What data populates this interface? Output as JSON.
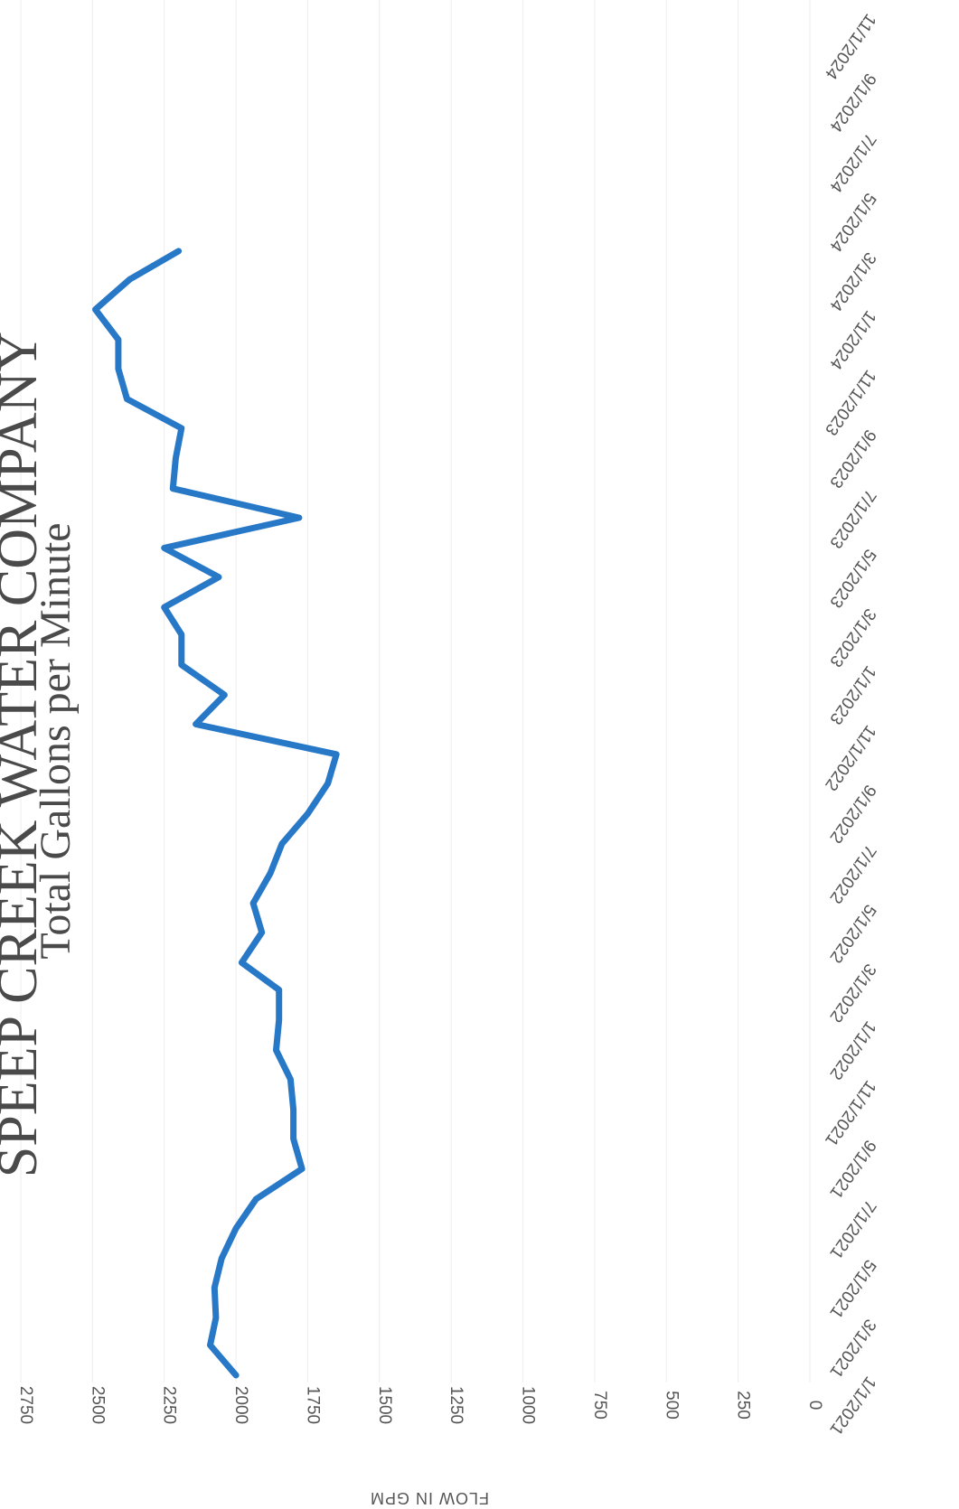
{
  "chart_data": {
    "type": "line",
    "title": "SPEEP CREEK WATER COMPANY",
    "subtitle": "Total Gallons per Minute",
    "xlabel": "",
    "ylabel": "FLOW IN GPM",
    "ylim": [
      0,
      2750
    ],
    "yticks": [
      0,
      250,
      500,
      750,
      1000,
      1250,
      1500,
      1750,
      2000,
      2250,
      2500,
      2750
    ],
    "xlim": [
      "1/1/2021",
      "11/1/2024"
    ],
    "xtick_labels": [
      "1/1/2021",
      "3/1/2021",
      "5/1/2021",
      "7/1/2021",
      "9/1/2021",
      "11/1/2021",
      "1/1/2022",
      "3/1/2022",
      "5/1/2022",
      "7/1/2022",
      "9/1/2022",
      "11/1/2022",
      "1/1/2023",
      "3/1/2023",
      "5/1/2023",
      "7/1/2023",
      "9/1/2023",
      "11/1/2023",
      "1/1/2024",
      "3/1/2024",
      "5/1/2024",
      "7/1/2024",
      "9/1/2024",
      "11/1/2024"
    ],
    "grid": true,
    "legend": "none",
    "orientation": "rotated 90 degrees clockwise",
    "series": [
      {
        "color": "#2878c8",
        "x": [
          "1/1/2021",
          "2/1/2021",
          "3/1/2021",
          "4/1/2021",
          "5/1/2021",
          "6/1/2021",
          "7/1/2021",
          "8/1/2021",
          "9/1/2021",
          "10/1/2021",
          "11/1/2021",
          "12/1/2021",
          "1/1/2022",
          "2/1/2022",
          "3/1/2022",
          "4/1/2022",
          "5/1/2022",
          "6/1/2022",
          "7/1/2022",
          "8/1/2022",
          "9/1/2022",
          "10/1/2022",
          "11/1/2022",
          "12/1/2022",
          "1/1/2023",
          "2/1/2023",
          "3/1/2023",
          "4/1/2023",
          "5/1/2023",
          "6/1/2023",
          "7/1/2023",
          "8/1/2023",
          "9/1/2023",
          "10/1/2023",
          "11/1/2023",
          "12/1/2023",
          "1/1/2024",
          "2/1/2024",
          "3/1/2024"
        ],
        "values": [
          2000,
          2090,
          2070,
          2075,
          2050,
          2000,
          1930,
          1770,
          1800,
          1800,
          1810,
          1860,
          1850,
          1850,
          1980,
          1910,
          1940,
          1880,
          1840,
          1750,
          1680,
          1650,
          2140,
          2040,
          2190,
          2190,
          2250,
          2060,
          2250,
          1780,
          2220,
          2210,
          2190,
          2380,
          2410,
          2410,
          2490,
          2370,
          2200
        ]
      }
    ]
  }
}
